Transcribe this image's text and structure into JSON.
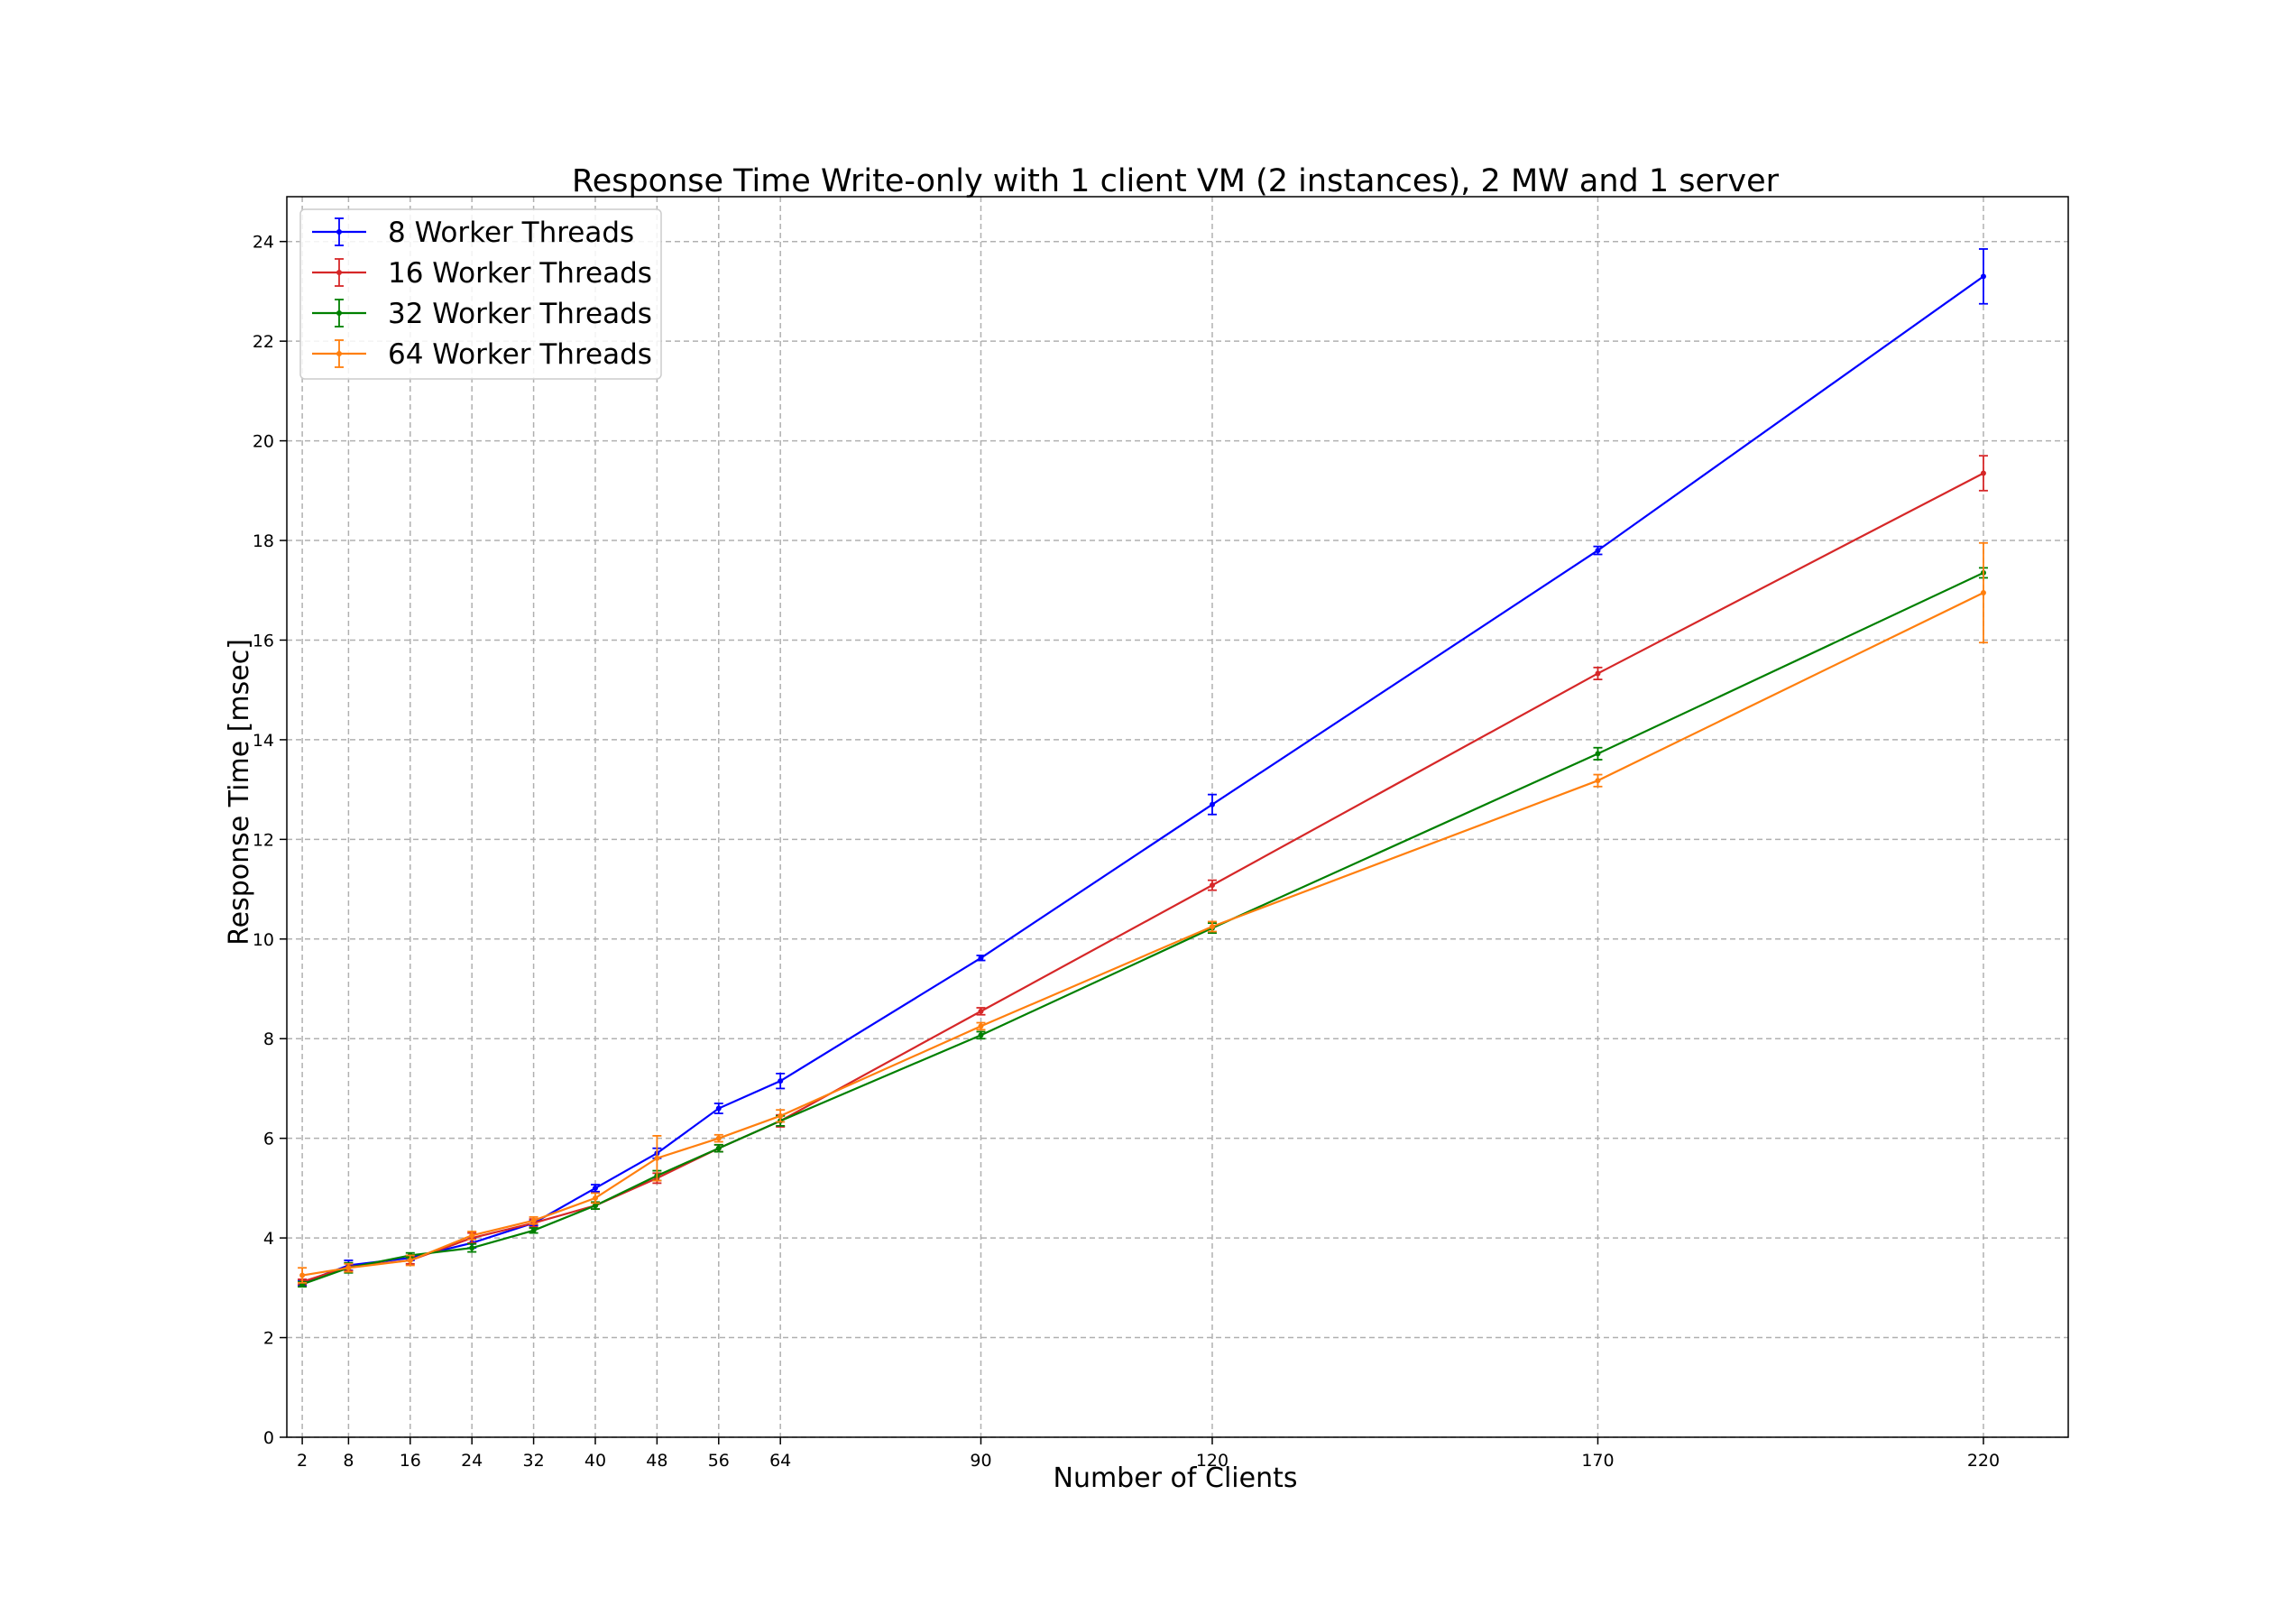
{
  "chart_data": {
    "type": "line",
    "title": "Response Time Write-only with 1 client VM (2 instances), 2 MW and 1 server",
    "xlabel": "Number of Clients",
    "ylabel": "Response Time [msec]",
    "x": [
      2,
      8,
      16,
      24,
      32,
      40,
      48,
      56,
      64,
      90,
      120,
      170,
      220
    ],
    "x_ticks": [
      "2",
      "8",
      "16",
      "24",
      "32",
      "40",
      "48",
      "56",
      "64",
      "90",
      "120",
      "170",
      "220"
    ],
    "y_ticks": [
      "0",
      "2",
      "4",
      "6",
      "8",
      "10",
      "12",
      "14",
      "16",
      "18",
      "20",
      "22",
      "24"
    ],
    "xlim": [
      0,
      231
    ],
    "ylim": [
      0,
      24.9
    ],
    "grid": true,
    "legend_position": "top-left",
    "series": [
      {
        "name": "8 Worker Threads",
        "color": "#0000ff",
        "values": [
          3.1,
          3.45,
          3.6,
          3.9,
          4.3,
          5.0,
          5.7,
          6.6,
          7.15,
          9.62,
          12.7,
          17.8,
          23.3
        ],
        "errors": [
          0.05,
          0.1,
          0.05,
          0.1,
          0.05,
          0.07,
          0.1,
          0.1,
          0.15,
          0.05,
          0.2,
          0.08,
          0.55
        ]
      },
      {
        "name": "16 Worker Threads",
        "color": "#d62728",
        "values": [
          3.12,
          3.42,
          3.55,
          4.0,
          4.3,
          4.65,
          5.2,
          5.8,
          6.35,
          8.55,
          11.08,
          15.33,
          19.35
        ],
        "errors": [
          0.05,
          0.08,
          0.07,
          0.1,
          0.08,
          0.07,
          0.1,
          0.07,
          0.12,
          0.07,
          0.1,
          0.12,
          0.35
        ]
      },
      {
        "name": "32 Worker Threads",
        "color": "#008000",
        "values": [
          3.07,
          3.4,
          3.65,
          3.8,
          4.15,
          4.65,
          5.25,
          5.8,
          6.35,
          8.07,
          10.22,
          13.72,
          17.35
        ],
        "errors": [
          0.05,
          0.1,
          0.05,
          0.08,
          0.05,
          0.07,
          0.1,
          0.07,
          0.1,
          0.07,
          0.1,
          0.12,
          0.1
        ]
      },
      {
        "name": "64 Worker Threads",
        "color": "#ff7f0e",
        "values": [
          3.25,
          3.4,
          3.55,
          4.05,
          4.35,
          4.8,
          5.6,
          6.0,
          6.45,
          8.25,
          10.25,
          13.18,
          16.95
        ],
        "errors": [
          0.15,
          0.08,
          0.1,
          0.08,
          0.07,
          0.1,
          0.45,
          0.07,
          0.12,
          0.07,
          0.1,
          0.12,
          1.0
        ]
      }
    ]
  }
}
